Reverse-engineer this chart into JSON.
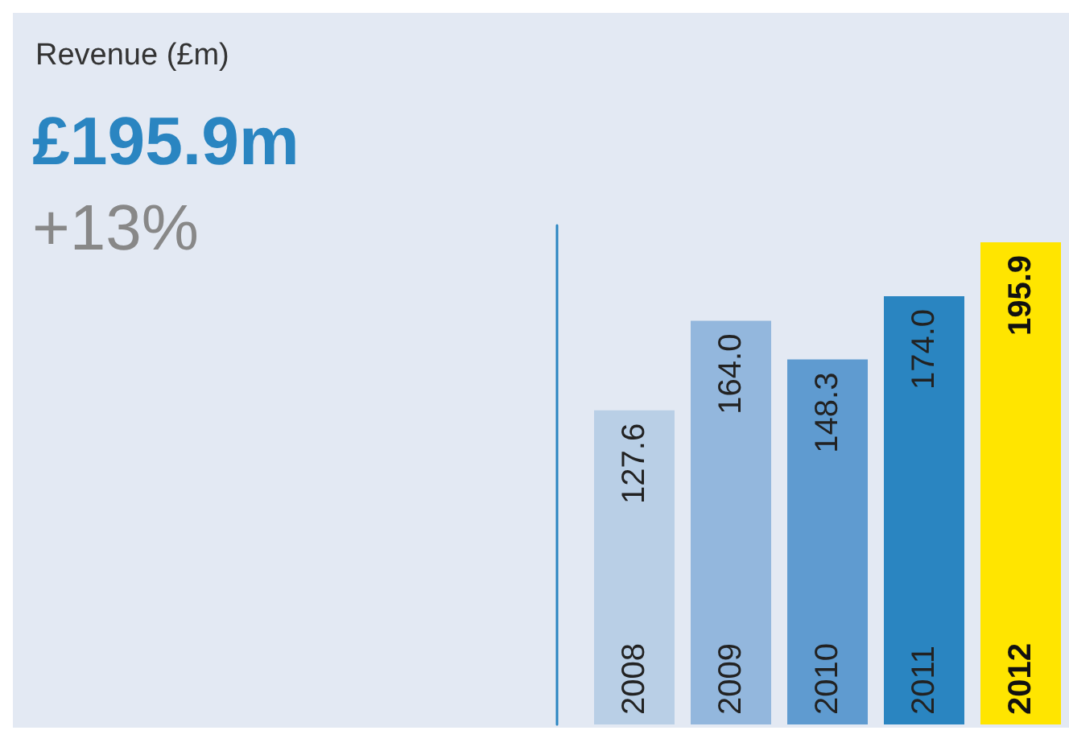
{
  "chart_data": {
    "type": "bar",
    "title": "Revenue (£m)",
    "subtitle": "£195.9m",
    "annotations": [
      "+13%"
    ],
    "categories": [
      "2008",
      "2009",
      "2010",
      "2011",
      "2012"
    ],
    "values": [
      127.6,
      164.0,
      148.3,
      174.0,
      195.9
    ],
    "colors": [
      "#b9cfe6",
      "#93b7dd",
      "#5f9bd0",
      "#2a85c1",
      "#ffe500"
    ],
    "value_labels": [
      "127.6",
      "164.0",
      "148.3",
      "174.0",
      "195.9"
    ]
  }
}
